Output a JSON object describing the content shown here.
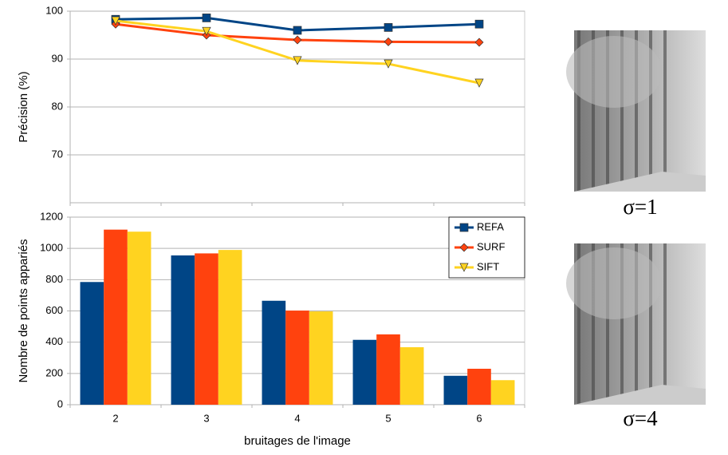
{
  "chart_data": [
    {
      "type": "line",
      "y_label": "Précision (%)",
      "ylim": [
        60,
        100
      ],
      "yticks": [
        70,
        80,
        90,
        100
      ],
      "grid": true,
      "series": [
        {
          "name": "REFA",
          "color": "#004586",
          "marker": "square",
          "values": [
            98.3,
            98.6,
            96,
            96.6,
            97.3
          ]
        },
        {
          "name": "SURF",
          "color": "#ff420e",
          "marker": "diamond",
          "values": [
            97.3,
            95,
            94,
            93.6,
            93.5
          ]
        },
        {
          "name": "SIFT",
          "color": "#ffd320",
          "marker": "triangle-down",
          "values": [
            98,
            95.8,
            89.7,
            89,
            85
          ]
        }
      ]
    },
    {
      "type": "bar",
      "y_label": "Nombre de points appariés",
      "x_label": "bruitages de l'image",
      "categories": [
        "2",
        "3",
        "4",
        "5",
        "6"
      ],
      "ylim": [
        0,
        1200
      ],
      "yticks": [
        0,
        200,
        400,
        600,
        800,
        1000,
        1200
      ],
      "grid": true,
      "series": [
        {
          "color": "#004586",
          "values": [
            785,
            955,
            665,
            415,
            185
          ]
        },
        {
          "color": "#ff420e",
          "values": [
            1120,
            968,
            602,
            450,
            230
          ]
        },
        {
          "color": "#ffd320",
          "values": [
            1107,
            990,
            597,
            368,
            157
          ]
        }
      ]
    }
  ],
  "images": [
    {
      "label": "σ=1"
    },
    {
      "label": "σ=4"
    }
  ]
}
